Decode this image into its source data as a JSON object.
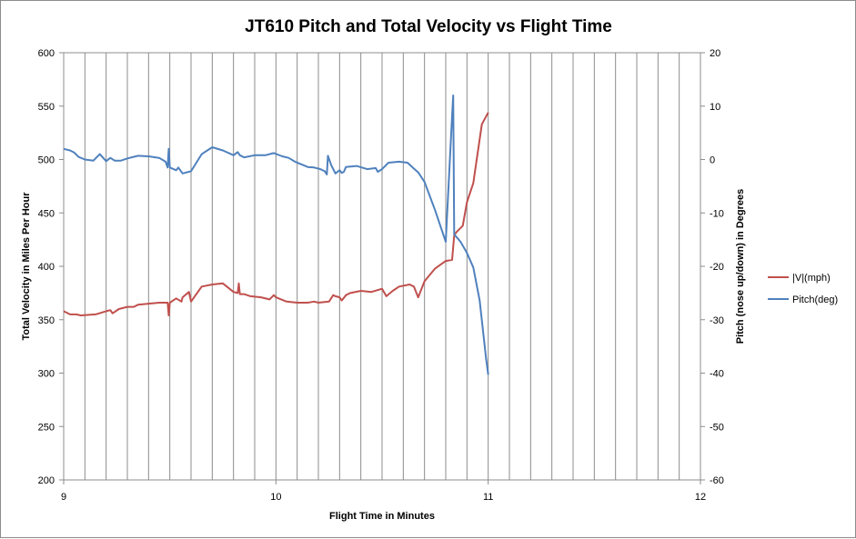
{
  "chart_data": {
    "type": "line",
    "title": "JT610 Pitch and Total Velocity vs Flight Time",
    "xlabel": "Flight Time in Minutes",
    "ylabel": "Total Velocity in Miles Per Hour",
    "y2label": "Pitch (nose up/down) in Degrees",
    "xlim": [
      9,
      12
    ],
    "ylim": [
      200,
      600
    ],
    "y2lim": [
      -60,
      20
    ],
    "x_ticks": [
      "9",
      "10",
      "11",
      "12"
    ],
    "y_ticks": [
      "200",
      "250",
      "300",
      "350",
      "400",
      "450",
      "500",
      "550",
      "600"
    ],
    "y2_ticks": [
      "-60",
      "-50",
      "-40",
      "-30",
      "-20",
      "-10",
      "0",
      "10",
      "20"
    ],
    "grid": "vertical",
    "legend_position": "right",
    "series": [
      {
        "name": "|V|(mph)",
        "axis": "left",
        "color": "#c0504d",
        "points": [
          [
            9.0,
            358
          ],
          [
            9.03,
            355
          ],
          [
            9.06,
            355
          ],
          [
            9.08,
            354
          ],
          [
            9.15,
            355
          ],
          [
            9.2,
            358
          ],
          [
            9.22,
            359
          ],
          [
            9.23,
            356
          ],
          [
            9.26,
            360
          ],
          [
            9.3,
            362
          ],
          [
            9.33,
            362
          ],
          [
            9.35,
            364
          ],
          [
            9.4,
            365
          ],
          [
            9.45,
            366
          ],
          [
            9.49,
            366
          ],
          [
            9.495,
            354
          ],
          [
            9.5,
            366
          ],
          [
            9.53,
            370
          ],
          [
            9.555,
            367
          ],
          [
            9.56,
            371
          ],
          [
            9.59,
            376
          ],
          [
            9.6,
            367
          ],
          [
            9.65,
            381
          ],
          [
            9.7,
            383
          ],
          [
            9.75,
            384
          ],
          [
            9.8,
            376
          ],
          [
            9.82,
            375
          ],
          [
            9.825,
            384
          ],
          [
            9.83,
            374
          ],
          [
            9.85,
            374
          ],
          [
            9.88,
            372
          ],
          [
            9.93,
            371
          ],
          [
            9.97,
            369
          ],
          [
            9.99,
            373
          ],
          [
            10.0,
            371
          ],
          [
            10.05,
            367
          ],
          [
            10.1,
            366
          ],
          [
            10.15,
            366
          ],
          [
            10.18,
            367
          ],
          [
            10.2,
            366
          ],
          [
            10.25,
            367
          ],
          [
            10.27,
            373
          ],
          [
            10.28,
            372
          ],
          [
            10.3,
            371
          ],
          [
            10.31,
            368
          ],
          [
            10.33,
            373
          ],
          [
            10.35,
            375
          ],
          [
            10.4,
            377
          ],
          [
            10.45,
            376
          ],
          [
            10.5,
            379
          ],
          [
            10.52,
            372
          ],
          [
            10.55,
            377
          ],
          [
            10.58,
            381
          ],
          [
            10.63,
            383
          ],
          [
            10.65,
            381
          ],
          [
            10.67,
            371
          ],
          [
            10.7,
            386
          ],
          [
            10.75,
            398
          ],
          [
            10.8,
            405
          ],
          [
            10.83,
            406
          ],
          [
            10.84,
            429
          ],
          [
            10.85,
            432
          ],
          [
            10.88,
            438
          ],
          [
            10.9,
            460
          ],
          [
            10.93,
            478
          ],
          [
            10.97,
            533
          ],
          [
            11.0,
            544
          ]
        ]
      },
      {
        "name": "Pitch(deg)",
        "axis": "right",
        "color": "#4f81bd",
        "points": [
          [
            9.0,
            2.0
          ],
          [
            9.03,
            1.7
          ],
          [
            9.05,
            1.3
          ],
          [
            9.07,
            0.5
          ],
          [
            9.1,
            0
          ],
          [
            9.14,
            -0.2
          ],
          [
            9.17,
            1.0
          ],
          [
            9.2,
            -0.3
          ],
          [
            9.22,
            0.3
          ],
          [
            9.24,
            -0.2
          ],
          [
            9.27,
            -0.2
          ],
          [
            9.3,
            0.2
          ],
          [
            9.35,
            0.7
          ],
          [
            9.4,
            0.6
          ],
          [
            9.45,
            0.3
          ],
          [
            9.48,
            -0.4
          ],
          [
            9.49,
            -1.5
          ],
          [
            9.495,
            2.0
          ],
          [
            9.5,
            -1.5
          ],
          [
            9.53,
            -2.0
          ],
          [
            9.54,
            -1.5
          ],
          [
            9.56,
            -2.6
          ],
          [
            9.6,
            -2.2
          ],
          [
            9.65,
            1.0
          ],
          [
            9.7,
            2.3
          ],
          [
            9.75,
            1.7
          ],
          [
            9.8,
            0.8
          ],
          [
            9.82,
            1.4
          ],
          [
            9.83,
            0.8
          ],
          [
            9.85,
            0.4
          ],
          [
            9.9,
            0.8
          ],
          [
            9.95,
            0.8
          ],
          [
            9.99,
            1.2
          ],
          [
            10.03,
            0.6
          ],
          [
            10.06,
            0.3
          ],
          [
            10.09,
            -0.4
          ],
          [
            10.12,
            -0.9
          ],
          [
            10.15,
            -1.4
          ],
          [
            10.18,
            -1.5
          ],
          [
            10.21,
            -1.8
          ],
          [
            10.23,
            -2.2
          ],
          [
            10.24,
            -2.8
          ],
          [
            10.245,
            0.7
          ],
          [
            10.26,
            -1.0
          ],
          [
            10.28,
            -2.6
          ],
          [
            10.3,
            -2.0
          ],
          [
            10.31,
            -2.5
          ],
          [
            10.32,
            -2.3
          ],
          [
            10.33,
            -1.4
          ],
          [
            10.38,
            -1.2
          ],
          [
            10.43,
            -1.8
          ],
          [
            10.47,
            -1.6
          ],
          [
            10.48,
            -2.3
          ],
          [
            10.5,
            -1.8
          ],
          [
            10.53,
            -0.6
          ],
          [
            10.58,
            -0.4
          ],
          [
            10.62,
            -0.6
          ],
          [
            10.65,
            -1.7
          ],
          [
            10.67,
            -2.4
          ],
          [
            10.7,
            -4.2
          ],
          [
            10.75,
            -9.5
          ],
          [
            10.8,
            -15.4
          ],
          [
            10.83,
            8.2
          ],
          [
            10.835,
            12.0
          ],
          [
            10.84,
            -14.0
          ],
          [
            10.87,
            -15.4
          ],
          [
            10.9,
            -17.5
          ],
          [
            10.93,
            -20.2
          ],
          [
            10.96,
            -26.4
          ],
          [
            10.99,
            -37.2
          ],
          [
            11.0,
            -40.3
          ]
        ]
      }
    ]
  }
}
